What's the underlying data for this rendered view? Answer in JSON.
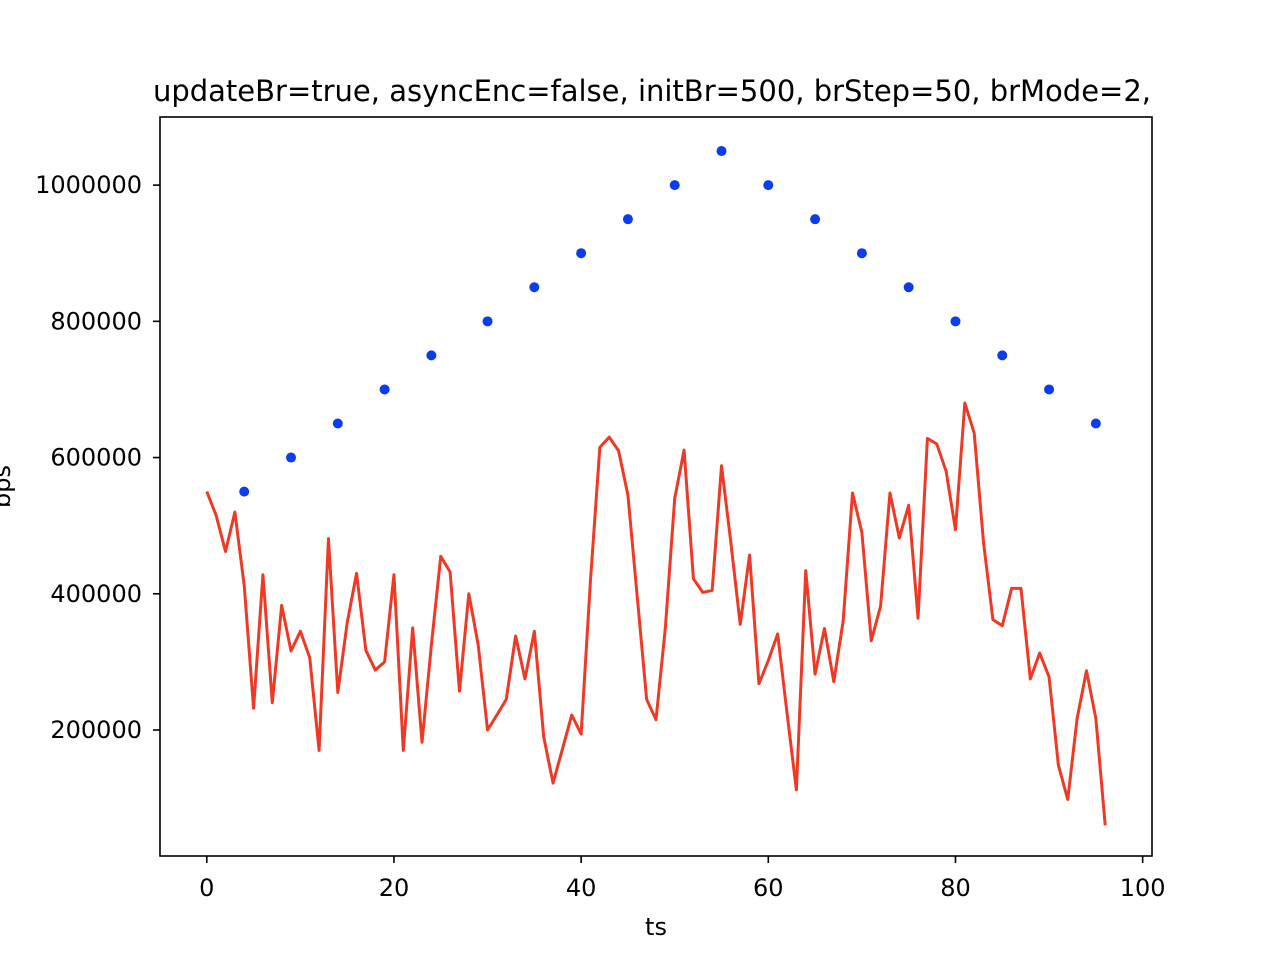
{
  "chart_data": {
    "type": "line",
    "title": "updateBr=true, asyncEnc=false, initBr=500, brStep=50, brMode=2,",
    "xlabel": "ts",
    "ylabel": "bps",
    "xlim": [
      -5,
      101
    ],
    "ylim": [
      15000,
      1100000
    ],
    "xticks": [
      0,
      20,
      40,
      60,
      80,
      100
    ],
    "yticks": [
      200000,
      400000,
      600000,
      800000,
      1000000
    ],
    "xtick_labels": [
      "0",
      "20",
      "40",
      "60",
      "80",
      "100"
    ],
    "ytick_labels": [
      "200000",
      "400000",
      "600000",
      "800000",
      "1000000"
    ],
    "grid": false,
    "series": [
      {
        "type": "scatter",
        "color": "#0a3cf0",
        "x": [
          4,
          9,
          14,
          19,
          24,
          30,
          35,
          40,
          45,
          50,
          55,
          60,
          65,
          70,
          75,
          80,
          85,
          90,
          95
        ],
        "y": [
          550000,
          600000,
          650000,
          700000,
          750000,
          800000,
          850000,
          900000,
          950000,
          1000000,
          1050000,
          1000000,
          950000,
          900000,
          850000,
          800000,
          750000,
          700000,
          650000
        ]
      },
      {
        "type": "line",
        "color": "#ee3a24",
        "x": [
          0,
          1,
          2,
          3,
          4,
          5,
          6,
          7,
          8,
          9,
          10,
          11,
          12,
          13,
          14,
          15,
          16,
          17,
          18,
          19,
          20,
          21,
          22,
          23,
          24,
          25,
          26,
          27,
          28,
          29,
          30,
          31,
          32,
          33,
          34,
          35,
          36,
          37,
          38,
          39,
          40,
          41,
          42,
          43,
          44,
          45,
          46,
          47,
          48,
          49,
          50,
          51,
          52,
          53,
          54,
          55,
          56,
          57,
          58,
          59,
          60,
          61,
          62,
          63,
          64,
          65,
          66,
          67,
          68,
          69,
          70,
          71,
          72,
          73,
          74,
          75,
          76,
          77,
          78,
          79,
          80,
          81,
          82,
          83,
          84,
          85,
          86,
          87,
          88,
          89,
          90,
          91,
          92,
          93,
          94,
          95,
          96
        ],
        "y": [
          550000,
          515000,
          462000,
          520000,
          412000,
          232000,
          428000,
          240000,
          383000,
          316000,
          345000,
          306000,
          170000,
          481000,
          255000,
          357000,
          430000,
          317000,
          288000,
          300000,
          428000,
          170000,
          350000,
          182000,
          325000,
          455000,
          432000,
          257000,
          400000,
          325000,
          200000,
          222000,
          245000,
          338000,
          275000,
          345000,
          190000,
          122000,
          172000,
          222000,
          194000,
          420000,
          615000,
          630000,
          610000,
          545000,
          395000,
          245000,
          215000,
          350000,
          540000,
          611000,
          422000,
          402000,
          405000,
          588000,
          475000,
          355000,
          457000,
          268000,
          302000,
          341000,
          225000,
          112000,
          434000,
          282000,
          349000,
          271000,
          360000,
          548000,
          490000,
          331000,
          382000,
          548000,
          482000,
          530000,
          364000,
          628000,
          620000,
          580000,
          494000,
          680000,
          636000,
          475000,
          362000,
          353000,
          408000,
          408000,
          275000,
          313000,
          278000,
          148000,
          98000,
          217000,
          287000,
          217000,
          60000
        ]
      }
    ]
  }
}
